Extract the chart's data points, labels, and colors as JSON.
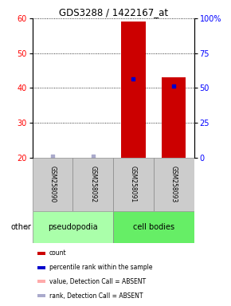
{
  "title": "GDS3288 / 1422167_at",
  "samples": [
    "GSM258090",
    "GSM258092",
    "GSM258091",
    "GSM258093"
  ],
  "groups": [
    "pseudopodia",
    "pseudopodia",
    "cell bodies",
    "cell bodies"
  ],
  "group_labels": [
    "pseudopodia",
    "cell bodies"
  ],
  "pseudopodia_color": "#aaffaa",
  "cell_bodies_color": "#66ee66",
  "red_values": [
    0,
    0,
    59,
    43
  ],
  "blue_values": [
    20.3,
    20.5,
    42.5,
    40.5
  ],
  "blue_absent": [
    true,
    true,
    false,
    false
  ],
  "ylim_left": [
    20,
    60
  ],
  "ylim_right": [
    0,
    100
  ],
  "yticks_left": [
    20,
    30,
    40,
    50,
    60
  ],
  "yticks_right": [
    0,
    25,
    50,
    75,
    100
  ],
  "ytick_right_labels": [
    "0",
    "25",
    "50",
    "75",
    "100%"
  ],
  "bar_color": "#cc0000",
  "dot_color": "#0000cc",
  "absent_dot_color": "#aaaacc",
  "gray_box_color": "#cccccc",
  "legend_items": [
    "count",
    "percentile rank within the sample",
    "value, Detection Call = ABSENT",
    "rank, Detection Call = ABSENT"
  ],
  "legend_colors": [
    "#cc0000",
    "#0000cc",
    "#ffaaaa",
    "#aaaacc"
  ],
  "other_label": "other",
  "bar_width": 0.6
}
